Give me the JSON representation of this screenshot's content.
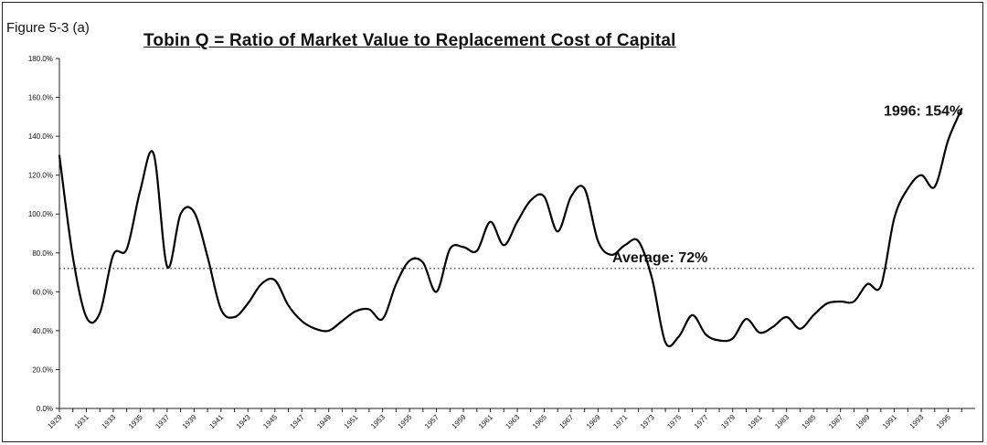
{
  "figure_label": "Figure 5-3 (a)",
  "chart_data": {
    "type": "line",
    "title": "Tobin Q = Ratio of Market Value to Replacement Cost of Capital",
    "xlabel": "",
    "ylabel": "",
    "ylim": [
      0,
      180
    ],
    "xlim": [
      1929,
      1997
    ],
    "yticks": [
      "0.0%",
      "20.0%",
      "40.0%",
      "60.0%",
      "80.0%",
      "100.0%",
      "120.0%",
      "140.0%",
      "160.0%",
      "180.0%"
    ],
    "xticks": [
      "1929",
      "1931",
      "1933",
      "1935",
      "1937",
      "1939",
      "1941",
      "1943",
      "1945",
      "1947",
      "1949",
      "1951",
      "1953",
      "1955",
      "1957",
      "1959",
      "1961",
      "1963",
      "1965",
      "1967",
      "1969",
      "1971",
      "1973",
      "1975",
      "1977",
      "1979",
      "1981",
      "1983",
      "1985",
      "1987",
      "1989",
      "1991",
      "1993",
      "1995"
    ],
    "grid": false,
    "series": [
      {
        "x": [
          1929,
          1930,
          1931,
          1932,
          1933,
          1934,
          1935,
          1936,
          1937,
          1938,
          1939,
          1940,
          1941,
          1942,
          1943,
          1944,
          1945,
          1946,
          1947,
          1948,
          1949,
          1950,
          1951,
          1952,
          1953,
          1954,
          1955,
          1956,
          1957,
          1958,
          1959,
          1960,
          1961,
          1962,
          1963,
          1964,
          1965,
          1966,
          1967,
          1968,
          1969,
          1970,
          1971,
          1972,
          1973,
          1974,
          1975,
          1976,
          1977,
          1978,
          1979,
          1980,
          1981,
          1982,
          1983,
          1984,
          1985,
          1986,
          1987,
          1988,
          1989,
          1990,
          1991,
          1992,
          1993,
          1994,
          1995,
          1996
        ],
        "values": [
          130,
          78,
          47,
          49,
          79,
          82,
          112,
          131,
          73,
          100,
          101,
          78,
          51,
          47,
          54,
          64,
          66,
          53,
          45,
          41,
          40,
          45,
          50,
          51,
          46,
          64,
          76,
          75,
          60,
          82,
          83,
          81,
          96,
          84,
          96,
          107,
          109,
          91,
          109,
          113,
          86,
          79,
          84,
          86,
          67,
          34,
          37,
          48,
          38,
          35,
          36,
          46,
          39,
          42,
          47,
          41,
          48,
          54,
          55,
          55,
          64,
          63,
          98,
          113,
          120,
          114,
          138,
          154
        ]
      }
    ],
    "reference_lines": [
      {
        "value": 72,
        "style": "dotted",
        "label": "Average: 72%"
      }
    ],
    "annotations": [
      {
        "label": "1996: 154%",
        "x": 1996,
        "y": 154
      }
    ]
  }
}
